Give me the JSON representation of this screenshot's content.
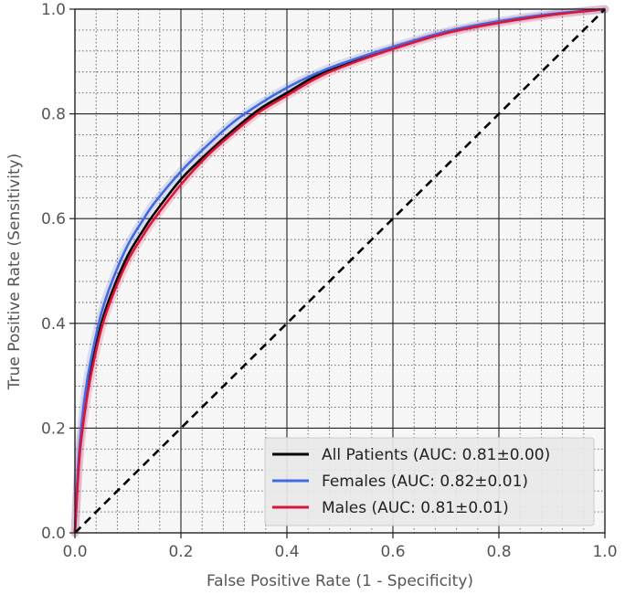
{
  "chart_data": {
    "type": "line",
    "xlabel": "False Positive Rate (1 - Specificity)",
    "ylabel": "True Positive Rate (Sensitivity)",
    "xlim": [
      0.0,
      1.0
    ],
    "ylim": [
      0.0,
      1.0
    ],
    "xticks": [
      "0.0",
      "0.2",
      "0.4",
      "0.6",
      "0.8",
      "1.0"
    ],
    "yticks": [
      "0.0",
      "0.2",
      "0.4",
      "0.6",
      "0.8",
      "1.0"
    ],
    "grid": true,
    "minor_grid": true,
    "legend_position": "lower-right",
    "series": [
      {
        "name": "All Patients (AUC: 0.81±0.00)",
        "color": "#000000",
        "x": [
          0,
          0.005,
          0.01,
          0.02,
          0.03,
          0.05,
          0.07,
          0.1,
          0.13,
          0.15,
          0.2,
          0.25,
          0.3,
          0.35,
          0.4,
          0.45,
          0.5,
          0.6,
          0.7,
          0.8,
          0.9,
          1.0
        ],
        "y": [
          0,
          0.1,
          0.17,
          0.25,
          0.31,
          0.4,
          0.46,
          0.53,
          0.58,
          0.61,
          0.675,
          0.725,
          0.77,
          0.81,
          0.84,
          0.87,
          0.89,
          0.925,
          0.955,
          0.975,
          0.99,
          1.0
        ]
      },
      {
        "name": "Females (AUC: 0.82±0.01)",
        "color": "#4169e1",
        "x": [
          0,
          0.005,
          0.01,
          0.02,
          0.03,
          0.05,
          0.07,
          0.1,
          0.13,
          0.15,
          0.2,
          0.25,
          0.3,
          0.35,
          0.4,
          0.45,
          0.5,
          0.6,
          0.7,
          0.8,
          0.9,
          1.0
        ],
        "y": [
          0,
          0.11,
          0.18,
          0.27,
          0.33,
          0.42,
          0.48,
          0.55,
          0.6,
          0.63,
          0.69,
          0.74,
          0.785,
          0.82,
          0.85,
          0.875,
          0.895,
          0.928,
          0.957,
          0.977,
          0.991,
          1.0
        ]
      },
      {
        "name": "Males (AUC: 0.81±0.01)",
        "color": "#dc143c",
        "x": [
          0,
          0.005,
          0.01,
          0.02,
          0.03,
          0.05,
          0.07,
          0.1,
          0.13,
          0.15,
          0.2,
          0.25,
          0.3,
          0.35,
          0.4,
          0.45,
          0.5,
          0.6,
          0.7,
          0.8,
          0.9,
          1.0
        ],
        "y": [
          0,
          0.09,
          0.16,
          0.24,
          0.3,
          0.39,
          0.45,
          0.52,
          0.57,
          0.6,
          0.665,
          0.72,
          0.765,
          0.805,
          0.835,
          0.865,
          0.888,
          0.924,
          0.954,
          0.974,
          0.989,
          1.0
        ]
      }
    ],
    "reference_line": {
      "x": [
        0,
        1
      ],
      "y": [
        0,
        1
      ],
      "style": "dashed",
      "color": "#000000"
    }
  }
}
